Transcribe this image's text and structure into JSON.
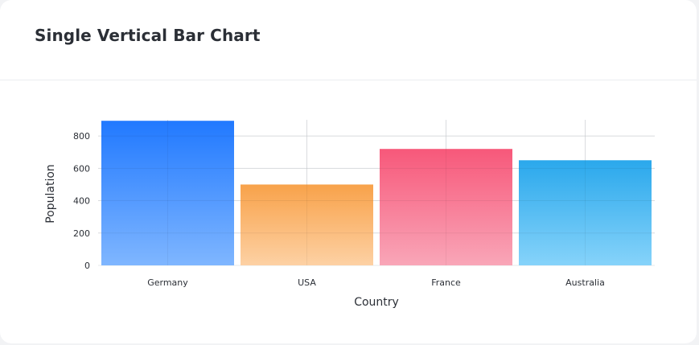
{
  "card": {
    "title": "Single Vertical Bar Chart"
  },
  "chart_data": {
    "type": "bar",
    "categories": [
      "Germany",
      "USA",
      "France",
      "Australia"
    ],
    "values": [
      894,
      500,
      720,
      650
    ],
    "xlabel": "Country",
    "ylabel": "Population",
    "ylim": [
      0,
      900
    ],
    "yticks": [
      0,
      200,
      400,
      600,
      800
    ],
    "grid": true,
    "colors": [
      {
        "top": "#2179ff",
        "bottom": "#7fb6ff"
      },
      {
        "top": "#f8a24a",
        "bottom": "#fdd1a4"
      },
      {
        "top": "#f7587a",
        "bottom": "#f9a6b8"
      },
      {
        "top": "#2aa8ec",
        "bottom": "#86d3fa"
      }
    ]
  }
}
